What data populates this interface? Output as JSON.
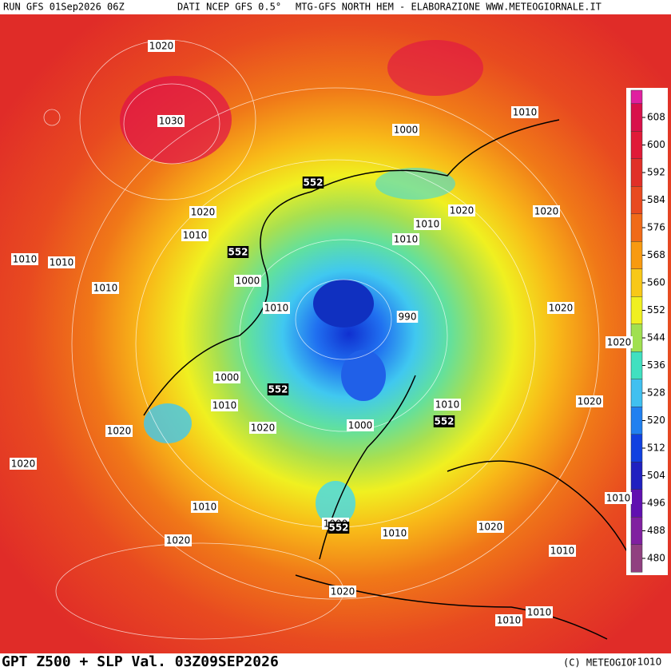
{
  "header": {
    "run": "RUN GFS 01Sep2026 06Z",
    "source": "DATI NCEP GFS 0.5°",
    "product": "MTG-GFS NORTH HEM - ELABORAZIONE WWW.METEOGIORNALE.IT"
  },
  "footer": {
    "title": "GPT Z500 + SLP Val. 03Z09SEP2026",
    "credit": "(C) METEOGIORNALE"
  },
  "colorbar": {
    "ticks": [
      608,
      600,
      592,
      584,
      576,
      568,
      560,
      552,
      544,
      536,
      528,
      520,
      512,
      504,
      496,
      488,
      480
    ]
  },
  "map": {
    "slp_labels": [
      1020,
      1030,
      1010,
      1000,
      1020,
      1020,
      1020,
      1010,
      1010,
      1010,
      1010,
      1010,
      1000,
      1010,
      1010,
      1020,
      990,
      1020,
      1000,
      1010,
      1010,
      1020,
      1000,
      1020,
      1020,
      1020,
      1010,
      1010,
      1000,
      1010,
      1020,
      1020,
      1010,
      1020,
      1010,
      1010,
      1010
    ],
    "z500_labels": [
      552,
      552,
      552,
      552,
      552
    ]
  }
}
